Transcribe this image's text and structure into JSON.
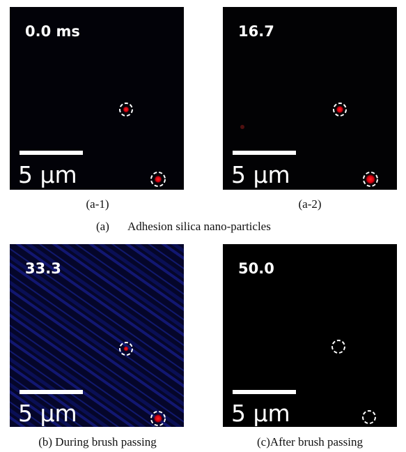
{
  "panels": [
    {
      "time_label": "0.0 ms",
      "scale_label": "5 μm",
      "caption": "(a-1)"
    },
    {
      "time_label": "16.7",
      "scale_label": "5 μm",
      "caption": "(a-2)"
    },
    {
      "time_label": "33.3",
      "scale_label": "5 μm",
      "caption": "(b) During brush passing"
    },
    {
      "time_label": "50.0",
      "scale_label": "5 μm",
      "caption": "(c)After brush passing"
    }
  ],
  "group_caption": {
    "label": "(a)",
    "text": "Adhesion silica nano-particles"
  }
}
